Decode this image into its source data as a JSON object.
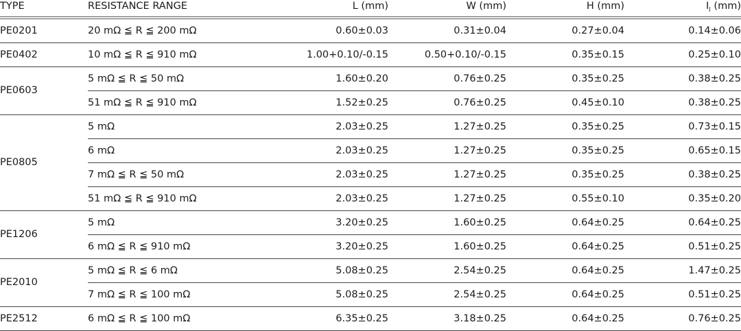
{
  "headers": {
    "type": "TYPE",
    "resistance": "RESISTANCE RANGE",
    "l": "L (mm)",
    "w": "W (mm)",
    "h": "H (mm)",
    "i_main": "I",
    "i_sub": "l",
    "i_unit": " (mm)"
  },
  "groups": [
    {
      "type": "PE0201",
      "rows": [
        {
          "range": "20 mΩ ≦ R ≦ 200 mΩ",
          "l": "0.60±0.03",
          "w": "0.31±0.04",
          "h": "0.27±0.04",
          "i": "0.14±0.06"
        }
      ]
    },
    {
      "type": "PE0402",
      "rows": [
        {
          "range": "10 mΩ ≦ R ≦ 910 mΩ",
          "l": "1.00+0.10/-0.15",
          "w": "0.50+0.10/-0.15",
          "h": "0.35±0.15",
          "i": "0.25±0.10"
        }
      ]
    },
    {
      "type": "PE0603",
      "rows": [
        {
          "range": "5 mΩ ≦ R ≦ 50 mΩ",
          "l": "1.60±0.20",
          "w": "0.76±0.25",
          "h": "0.35±0.25",
          "i": "0.38±0.25"
        },
        {
          "range": "51 mΩ ≦ R ≦ 910 mΩ",
          "l": "1.52±0.25",
          "w": "0.76±0.25",
          "h": "0.45±0.10",
          "i": "0.38±0.25"
        }
      ]
    },
    {
      "type": "PE0805",
      "rows": [
        {
          "range": "5 mΩ",
          "l": "2.03±0.25",
          "w": "1.27±0.25",
          "h": "0.35±0.25",
          "i": "0.73±0.15"
        },
        {
          "range": "6 mΩ",
          "l": "2.03±0.25",
          "w": "1.27±0.25",
          "h": "0.35±0.25",
          "i": "0.65±0.15"
        },
        {
          "range": "7 mΩ ≦ R ≦ 50 mΩ",
          "l": "2.03±0.25",
          "w": "1.27±0.25",
          "h": "0.35±0.25",
          "i": "0.38±0.25"
        },
        {
          "range": "51 mΩ ≦ R ≦ 910 mΩ",
          "l": "2.03±0.25",
          "w": "1.27±0.25",
          "h": "0.55±0.10",
          "i": "0.35±0.20"
        }
      ]
    },
    {
      "type": "PE1206",
      "rows": [
        {
          "range": "5 mΩ",
          "l": "3.20±0.25",
          "w": "1.60±0.25",
          "h": "0.64±0.25",
          "i": "0.64±0.25"
        },
        {
          "range": "6 mΩ ≦ R ≦ 910 mΩ",
          "l": "3.20±0.25",
          "w": "1.60±0.25",
          "h": "0.64±0.25",
          "i": "0.51±0.25"
        }
      ]
    },
    {
      "type": "PE2010",
      "rows": [
        {
          "range": "5 mΩ ≦ R ≦ 6 mΩ",
          "l": "5.08±0.25",
          "w": "2.54±0.25",
          "h": "0.64±0.25",
          "i": "1.47±0.25"
        },
        {
          "range": "7 mΩ ≦ R ≦ 100 mΩ",
          "l": "5.08±0.25",
          "w": "2.54±0.25",
          "h": "0.64±0.25",
          "i": "0.51±0.25"
        }
      ]
    },
    {
      "type": "PE2512",
      "rows": [
        {
          "range": "6 mΩ ≦ R ≦ 100 mΩ",
          "l": "6.35±0.25",
          "w": "3.18±0.25",
          "h": "0.64±0.25",
          "i": "0.76±0.25"
        }
      ]
    }
  ]
}
